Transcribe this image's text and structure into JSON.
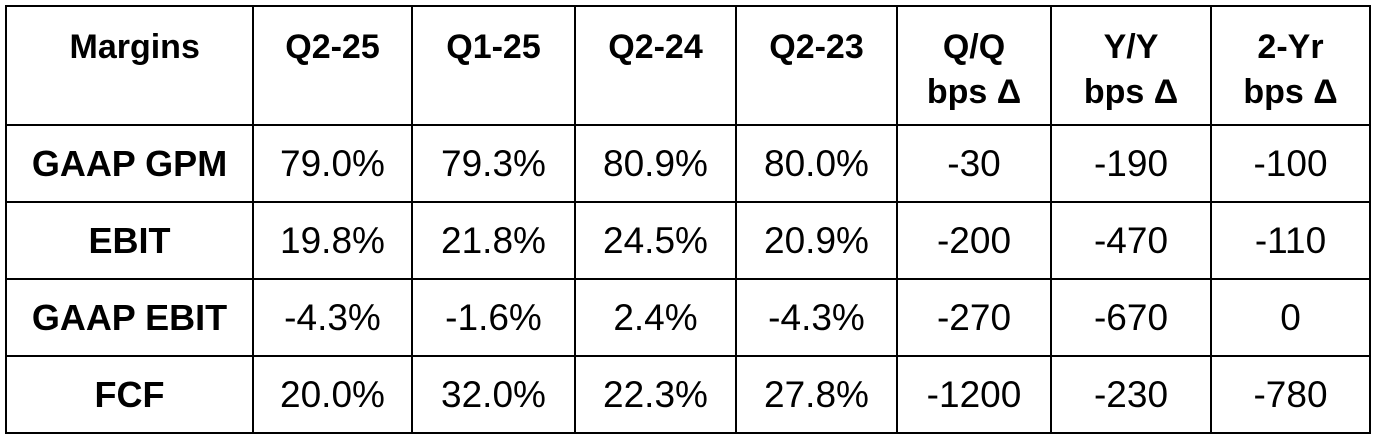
{
  "table": {
    "header": [
      "Margins",
      "Q2-25",
      "Q1-25",
      "Q2-24",
      "Q2-23",
      "Q/Q bps Δ",
      "Y/Y bps Δ",
      "2-Yr bps Δ"
    ],
    "rows": [
      [
        "GAAP GPM",
        "79.0%",
        "79.3%",
        "80.9%",
        "80.0%",
        "-30",
        "-190",
        "-100"
      ],
      [
        "EBIT",
        "19.8%",
        "21.8%",
        "24.5%",
        "20.9%",
        "-200",
        "-470",
        "-110"
      ],
      [
        "GAAP EBIT",
        "-4.3%",
        "-1.6%",
        "2.4%",
        "-4.3%",
        "-270",
        "-670",
        "0"
      ],
      [
        "FCF",
        "20.0%",
        "32.0%",
        "22.3%",
        "27.8%",
        "-1200",
        "-230",
        "-780"
      ]
    ]
  }
}
